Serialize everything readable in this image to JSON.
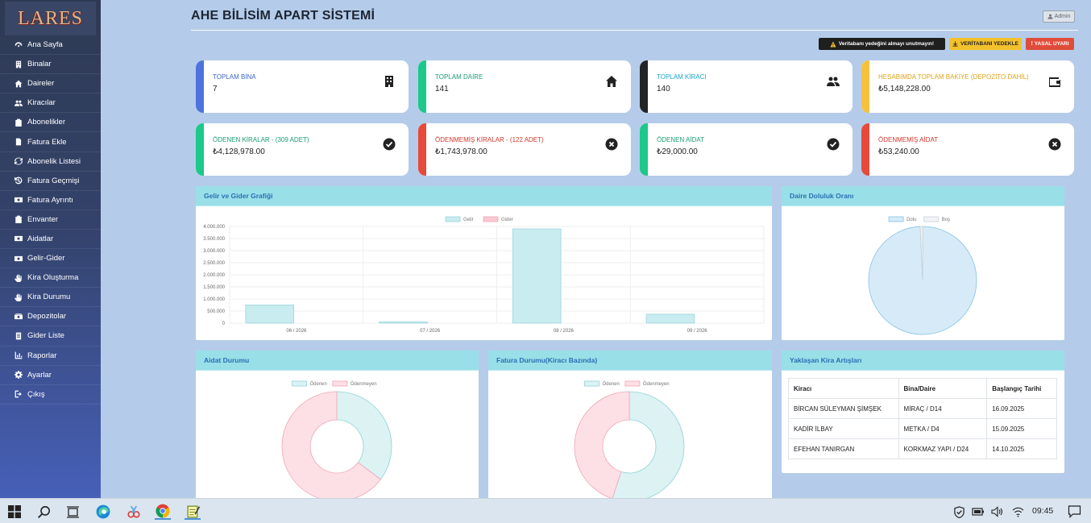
{
  "app": {
    "logo": "LARES",
    "title": "AHE BİLİSİM APART SİSTEMİ",
    "admin_label": "Admin"
  },
  "sidebar": {
    "items": [
      {
        "label": "Ana Sayfa",
        "icon": "dashboard-icon"
      },
      {
        "label": "Binalar",
        "icon": "building-icon"
      },
      {
        "label": "Daireler",
        "icon": "home-icon"
      },
      {
        "label": "Kiracılar",
        "icon": "users-icon"
      },
      {
        "label": "Abonelikler",
        "icon": "clipboard-icon"
      },
      {
        "label": "Fatura Ekle",
        "icon": "file-icon"
      },
      {
        "label": "Abonelik Listesi",
        "icon": "refresh-icon"
      },
      {
        "label": "Fatura Geçmişi",
        "icon": "history-icon"
      },
      {
        "label": "Fatura Ayrıntı",
        "icon": "money-icon"
      },
      {
        "label": "Envanter",
        "icon": "clipboard-icon"
      },
      {
        "label": "Aidatlar",
        "icon": "money-icon"
      },
      {
        "label": "Gelir-Gider",
        "icon": "money-icon"
      },
      {
        "label": "Kira Oluşturma",
        "icon": "hand-icon"
      },
      {
        "label": "Kira Durumu",
        "icon": "hand-icon"
      },
      {
        "label": "Depozitolar",
        "icon": "cash-icon"
      },
      {
        "label": "Gider Liste",
        "icon": "list-icon"
      },
      {
        "label": "Raporlar",
        "icon": "chart-icon"
      },
      {
        "label": "Ayarlar",
        "icon": "gear-icon"
      },
      {
        "label": "Çıkış",
        "icon": "logout-icon"
      }
    ]
  },
  "toolbar": {
    "warning": "Veritabanı yedeğini almayı unutmayın!",
    "backup_label": "VERİTABANI YEDEKLE",
    "legal_label": "YASAL UYARI"
  },
  "stats": [
    {
      "label": "TOPLAM BİNA",
      "value": "7",
      "color": "#4e73df",
      "label_color": "#3a66c9",
      "icon": "building-icon"
    },
    {
      "label": "TOPLAM DAİRE",
      "value": "141",
      "color": "#1cc88a",
      "label_color": "#1a9e70",
      "icon": "home-icon"
    },
    {
      "label": "TOPLAM KİRACI",
      "value": "140",
      "color": "#222428",
      "label_color": "#1aa6c8",
      "icon": "users-icon"
    },
    {
      "label": "HESABIMDA TOPLAM BAKİYE (DEPOZİTO DAHİL)",
      "value": "₺5,148,228.00",
      "color": "#f6c23e",
      "label_color": "#e0a41a",
      "icon": "wallet-icon"
    },
    {
      "label": "ÖDENEN KİRALAR - (309 ADET)",
      "value": "₺4,128,978.00",
      "color": "#1cc88a",
      "label_color": "#1a9e70",
      "icon": "check-circle-icon"
    },
    {
      "label": "ÖDENMEMİŞ KİRALAR - (122 ADET)",
      "value": "₺1,743,978.00",
      "color": "#e74a3b",
      "label_color": "#d0392b",
      "icon": "x-circle-icon"
    },
    {
      "label": "ÖDENEN AİDAT",
      "value": "₺29,000.00",
      "color": "#1cc88a",
      "label_color": "#1a9e70",
      "icon": "check-circle-icon"
    },
    {
      "label": "ÖDENMEMİŞ AİDAT",
      "value": "₺53,240.00",
      "color": "#e74a3b",
      "label_color": "#d0392b",
      "icon": "x-circle-icon"
    }
  ],
  "panels": {
    "income_title": "Gelir ve Gider Grafiği",
    "occupancy_title": "Daire Doluluk Oranı",
    "dues_title": "Aidat Durumu",
    "invoice_title": "Fatura Durumu(Kiracı Bazında)",
    "rent_title": "Yaklaşan Kira Artışları"
  },
  "chart_data": [
    {
      "type": "bar",
      "title": "Gelir ve Gider Grafiği",
      "categories": [
        "06 / 2026",
        "07 / 2026",
        "08 / 2026",
        "09 / 2026"
      ],
      "series": [
        {
          "name": "Gelir",
          "values": [
            750000,
            50000,
            3900000,
            370000
          ],
          "color": "#c8ecef"
        },
        {
          "name": "Gider",
          "values": [
            0,
            0,
            0,
            0
          ],
          "color": "#f9c9d4"
        }
      ],
      "ylim": [
        0,
        4000000
      ],
      "yticks": [
        "4.000.000",
        "3.500.000",
        "3.000.000",
        "2.500.000",
        "2.000.000",
        "1.500.000",
        "1.000.000",
        "500.000",
        "0"
      ],
      "legend": "top"
    },
    {
      "type": "pie",
      "title": "Daire Doluluk Oranı",
      "labels": [
        "Dolu",
        "Boş"
      ],
      "values": [
        140,
        1
      ],
      "colors": [
        "#d6ebf7",
        "#f1f3f5"
      ],
      "legend": "top"
    },
    {
      "type": "pie",
      "title": "Aidat Durumu",
      "labels": [
        "Ödenen",
        "Ödenmeyen"
      ],
      "values": [
        29000,
        53240
      ],
      "colors": [
        "#dcf2f3",
        "#fde0e6"
      ],
      "legend": "top"
    },
    {
      "type": "pie",
      "title": "Fatura Durumu(Kiracı Bazında)",
      "labels": [
        "Ödenen",
        "Ödenmeyen"
      ],
      "values": [
        55,
        45
      ],
      "colors": [
        "#dcf2f3",
        "#fde0e6"
      ],
      "legend": "top"
    }
  ],
  "rent_table": {
    "headers": [
      "Kiracı",
      "Bina/Daire",
      "Başlangıç Tarihi"
    ],
    "rows": [
      [
        "BİRCAN SÜLEYMAN ŞİMŞEK",
        "MİRAÇ / D14",
        "16.09.2025"
      ],
      [
        "KADİR İLBAY",
        "METKA / D4",
        "15.09.2025"
      ],
      [
        "EFEHAN TANIRGAN",
        "KORKMAZ YAPI / D24",
        "14.10.2025"
      ]
    ]
  },
  "taskbar": {
    "time": "09:45"
  }
}
